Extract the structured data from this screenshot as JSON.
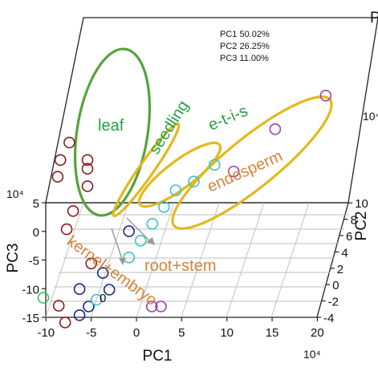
{
  "chart_data": {
    "type": "scatter",
    "title": "",
    "variance_explained": [
      "PC1 50.02%",
      "PC2 26.25%",
      "PC3 11.00%"
    ],
    "axes": {
      "x": {
        "label": "PC1",
        "exponent": "10⁴",
        "ticks": [
          -10,
          -5,
          0,
          5,
          10,
          15,
          20
        ],
        "tick_labels": [
          "-10",
          "-5",
          "0",
          "5",
          "10",
          "15",
          "20"
        ]
      },
      "y": {
        "label": "PC2",
        "exponent": "10⁴",
        "ticks": [
          -4,
          -2,
          0,
          2,
          4,
          6,
          8,
          10
        ],
        "tick_labels": [
          "-4",
          "-2",
          "0",
          "2",
          "4",
          "6",
          "8",
          "10"
        ]
      },
      "z": {
        "label": "PC3",
        "exponent": "10⁴",
        "ticks": [
          -15,
          -10,
          -5,
          0,
          5
        ],
        "tick_labels": [
          "-15",
          "-10",
          "-5",
          "0",
          "5"
        ]
      }
    },
    "grid": true,
    "stray_label": "0",
    "cropped_axis_letter": "P",
    "groups": [
      {
        "name": "leaf",
        "label_color": "#29a043",
        "marker_color": "#8b1a1a",
        "ellipse_color": "#56a33c",
        "points": [
          [
            -8,
            2,
            10
          ],
          [
            -9,
            2,
            8
          ],
          [
            -9,
            1,
            7
          ],
          [
            -6,
            2,
            8
          ],
          [
            -6,
            2,
            7
          ],
          [
            -6,
            2,
            5
          ],
          [
            -7,
            0,
            4
          ],
          [
            -8,
            1,
            1
          ],
          [
            -5,
            0,
            -2
          ],
          [
            -8,
            -2,
            -5
          ],
          [
            -7,
            -3,
            -6
          ]
        ]
      },
      {
        "name": "seedling",
        "label_color": "#29a043",
        "marker_color": "#1a2680",
        "ellipse_color": "#e3b91f",
        "points": [
          [
            -4,
            1,
            -4
          ],
          [
            -3,
            0,
            -5
          ],
          [
            -5,
            -1,
            -6
          ],
          [
            -6,
            -1,
            -7
          ],
          [
            -2,
            4,
            -2
          ]
        ]
      },
      {
        "name": "e-t-i-s",
        "label_color": "#29a043",
        "marker_color": "#39c1d1",
        "ellipse_color": "#e3b91f",
        "points": [
          [
            1,
            7,
            -2
          ],
          [
            2,
            8,
            -1
          ],
          [
            4,
            8,
            0
          ],
          [
            6,
            9,
            1
          ],
          [
            0,
            6,
            -3
          ],
          [
            -1,
            5,
            -4
          ],
          [
            -2,
            4,
            -5
          ],
          [
            -5,
            2,
            -8
          ]
        ]
      },
      {
        "name": "endosperm",
        "label_color": "#d2843a",
        "marker_color": "#9b3fae",
        "ellipse_color": "#e3b91f",
        "points": [
          [
            18,
            10,
            8
          ],
          [
            13,
            8,
            6
          ],
          [
            9,
            6,
            3
          ],
          [
            2,
            -1,
            -6
          ],
          [
            3,
            -1,
            -6
          ]
        ]
      },
      {
        "name": "kernel+embryo",
        "label_color": "#d2843a",
        "marker_color": "#3cbf5a",
        "ellipse_color": null,
        "points": [
          [
            -10,
            -1,
            -5
          ]
        ]
      },
      {
        "name": "root+stem",
        "label_color": "#d2843a",
        "marker_color": "#1a2680",
        "ellipse_color": null,
        "points": [
          [
            -6,
            -1,
            -4
          ]
        ]
      }
    ]
  }
}
